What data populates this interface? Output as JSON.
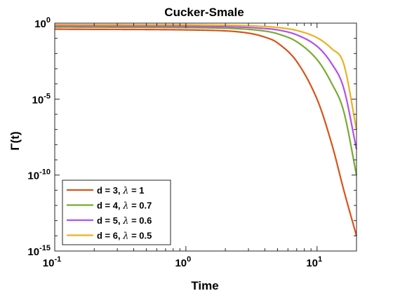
{
  "chart_data": {
    "type": "line",
    "title": "Cucker-Smale",
    "xlabel": "Time",
    "ylabel": "Γ(t)",
    "xscale": "log",
    "yscale": "log",
    "xlim": [
      0.1,
      20
    ],
    "ylim": [
      1e-15,
      1
    ],
    "grid": false,
    "legend_position": "bottom-left",
    "x_ticks": [
      {
        "value": 0.1,
        "base": "10",
        "exp": "-1"
      },
      {
        "value": 1,
        "base": "10",
        "exp": "0"
      },
      {
        "value": 10,
        "base": "10",
        "exp": "1"
      }
    ],
    "y_ticks": [
      {
        "value": 1e-15,
        "base": "10",
        "exp": "-15"
      },
      {
        "value": 1e-10,
        "base": "10",
        "exp": "-10"
      },
      {
        "value": 1e-05,
        "base": "10",
        "exp": "-5"
      },
      {
        "value": 1,
        "base": "10",
        "exp": "0"
      }
    ],
    "series": [
      {
        "name": "d = 3, λ = 1",
        "label_prefix": "d = 3, ",
        "label_lambda": "λ",
        "label_suffix": " = 1",
        "color": "#D95319",
        "x": [
          0.1,
          0.2,
          0.5,
          1,
          2,
          3,
          4,
          5,
          7,
          10,
          13,
          16,
          20
        ],
        "y": [
          0.4,
          0.39,
          0.38,
          0.36,
          0.31,
          0.22,
          0.12,
          0.05,
          0.003,
          1e-05,
          1e-08,
          1e-11,
          1e-14
        ]
      },
      {
        "name": "d = 4, λ = 0.7",
        "label_prefix": "d = 4, ",
        "label_lambda": "λ",
        "label_suffix": " = 0.7",
        "color": "#77AC30",
        "x": [
          0.1,
          0.2,
          0.5,
          1,
          2,
          3,
          4,
          5,
          7,
          10,
          13,
          16,
          20
        ],
        "y": [
          0.55,
          0.54,
          0.53,
          0.51,
          0.46,
          0.39,
          0.3,
          0.2,
          0.06,
          0.004,
          0.0001,
          1.5e-06,
          1e-10
        ]
      },
      {
        "name": "d = 5, λ = 0.6",
        "label_prefix": "d = 5, ",
        "label_lambda": "λ",
        "label_suffix": " = 0.6",
        "color": "#B550E8",
        "x": [
          0.1,
          0.2,
          0.5,
          1,
          2,
          3,
          4,
          5,
          7,
          10,
          13,
          16,
          20
        ],
        "y": [
          0.66,
          0.65,
          0.64,
          0.62,
          0.58,
          0.52,
          0.44,
          0.36,
          0.17,
          0.03,
          0.002,
          5e-05,
          5e-09
        ]
      },
      {
        "name": "d = 6, λ = 0.5",
        "label_prefix": "d = 6, ",
        "label_lambda": "λ",
        "label_suffix": " = 0.5",
        "color": "#EDB120",
        "x": [
          0.1,
          0.2,
          0.5,
          1,
          2,
          3,
          4,
          5,
          7,
          10,
          13,
          16,
          20
        ],
        "y": [
          0.8,
          0.79,
          0.78,
          0.77,
          0.73,
          0.68,
          0.6,
          0.52,
          0.33,
          0.11,
          0.02,
          0.002,
          1e-07
        ]
      }
    ]
  }
}
